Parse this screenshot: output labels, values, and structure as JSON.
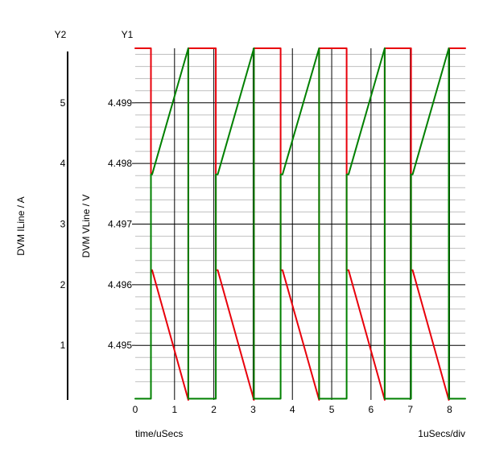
{
  "chart_data": {
    "type": "line",
    "title": "",
    "axis_names": {
      "y2": "Y2",
      "y1": "Y1"
    },
    "xlabel": "time/uSecs",
    "x_scale_label": "1uSecs/div",
    "y1label": "DVM VLine / V",
    "y2label": "DVM ILine / A",
    "xlim": [
      0,
      8.4
    ],
    "y1lim": [
      4.4941,
      4.4999
    ],
    "y2lim": [
      0.1,
      5.9
    ],
    "x_ticks": [
      0,
      1,
      2,
      3,
      4,
      5,
      6,
      7,
      8
    ],
    "y1_ticks": [
      4.495,
      4.496,
      4.497,
      4.498,
      4.499
    ],
    "y1_tick_labels": [
      "4.495",
      "4.496",
      "4.497",
      "4.498",
      "4.499"
    ],
    "y2_ticks": [
      1,
      2,
      3,
      4,
      5
    ],
    "grid": true,
    "series": [
      {
        "axis": "y1",
        "color": "#e8000b",
        "x": [
          0,
          0.4,
          0.4,
          0.43,
          1.35,
          1.35,
          1.4,
          1.7,
          1.98,
          2.05,
          2.05,
          2.1,
          3.02,
          3.02,
          3.06,
          3.6,
          3.7,
          3.7,
          3.75,
          4.68,
          4.68,
          4.72,
          5.0,
          5.35,
          5.38,
          5.38,
          5.43,
          6.35,
          6.35,
          6.4,
          7.0,
          7.02,
          7.02,
          7.06,
          7.98,
          7.98,
          8.02,
          8.4
        ],
        "values": [
          4.4999,
          4.4999,
          4.49624,
          4.49624,
          4.4941,
          4.4999,
          4.4999,
          4.4999,
          4.4999,
          4.4999,
          4.49624,
          4.49624,
          4.4941,
          4.4999,
          4.4999,
          4.4999,
          4.4999,
          4.49624,
          4.49624,
          4.4941,
          4.4999,
          4.4999,
          4.4999,
          4.4999,
          4.4999,
          4.49624,
          4.49624,
          4.4941,
          4.4999,
          4.4999,
          4.4999,
          4.4999,
          4.49624,
          4.49624,
          4.4941,
          4.4999,
          4.4999,
          4.4999
        ]
      },
      {
        "axis": "y1",
        "color": "#008000",
        "x": [
          0,
          0.4,
          0.4,
          0.43,
          1.35,
          1.35,
          1.4,
          2.05,
          2.05,
          2.1,
          3.02,
          3.02,
          3.06,
          3.7,
          3.7,
          3.75,
          4.68,
          4.68,
          4.72,
          5.38,
          5.38,
          5.43,
          6.35,
          6.35,
          6.4,
          7.02,
          7.02,
          7.06,
          7.98,
          7.98,
          8.02,
          8.4
        ],
        "values": [
          4.49412,
          4.49412,
          4.49782,
          4.49782,
          4.4999,
          4.49412,
          4.49412,
          4.49412,
          4.49782,
          4.49782,
          4.4999,
          4.49412,
          4.49412,
          4.49412,
          4.49782,
          4.49782,
          4.4999,
          4.49412,
          4.49412,
          4.49412,
          4.49782,
          4.49782,
          4.4999,
          4.49412,
          4.49412,
          4.49412,
          4.49782,
          4.49782,
          4.4999,
          4.49412,
          4.49412,
          4.49412
        ]
      }
    ]
  }
}
